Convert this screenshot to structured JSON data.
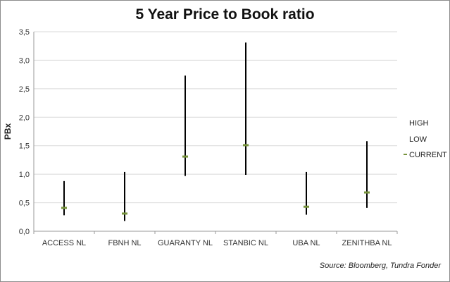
{
  "chart_data": {
    "type": "high-low-current",
    "title": "5 Year Price to Book ratio",
    "ylabel": "PBx",
    "xlabel": "",
    "ylim": [
      0,
      3.5
    ],
    "yticks": [
      "0,0",
      "0,5",
      "1,0",
      "1,5",
      "2,0",
      "2,5",
      "3,0",
      "3,5"
    ],
    "ytick_values": [
      0,
      0.5,
      1.0,
      1.5,
      2.0,
      2.5,
      3.0,
      3.5
    ],
    "grid": true,
    "legend_position": "right",
    "categories": [
      "ACCESS NL",
      "FBNH NL",
      "GUARANTY NL",
      "STANBIC NL",
      "UBA NL",
      "ZENITHBA NL"
    ],
    "series": [
      {
        "name": "HIGH",
        "values": [
          0.88,
          1.04,
          2.73,
          3.31,
          1.04,
          1.58
        ]
      },
      {
        "name": "LOW",
        "values": [
          0.28,
          0.18,
          0.97,
          0.99,
          0.29,
          0.41
        ]
      },
      {
        "name": "CURRENT",
        "values": [
          0.41,
          0.31,
          1.31,
          1.51,
          0.43,
          0.68
        ]
      }
    ],
    "colors": {
      "range": "#000000",
      "current": "#77933c",
      "grid": "#d9d9d9"
    },
    "source": "Source: Bloomberg, Tundra Fonder"
  }
}
